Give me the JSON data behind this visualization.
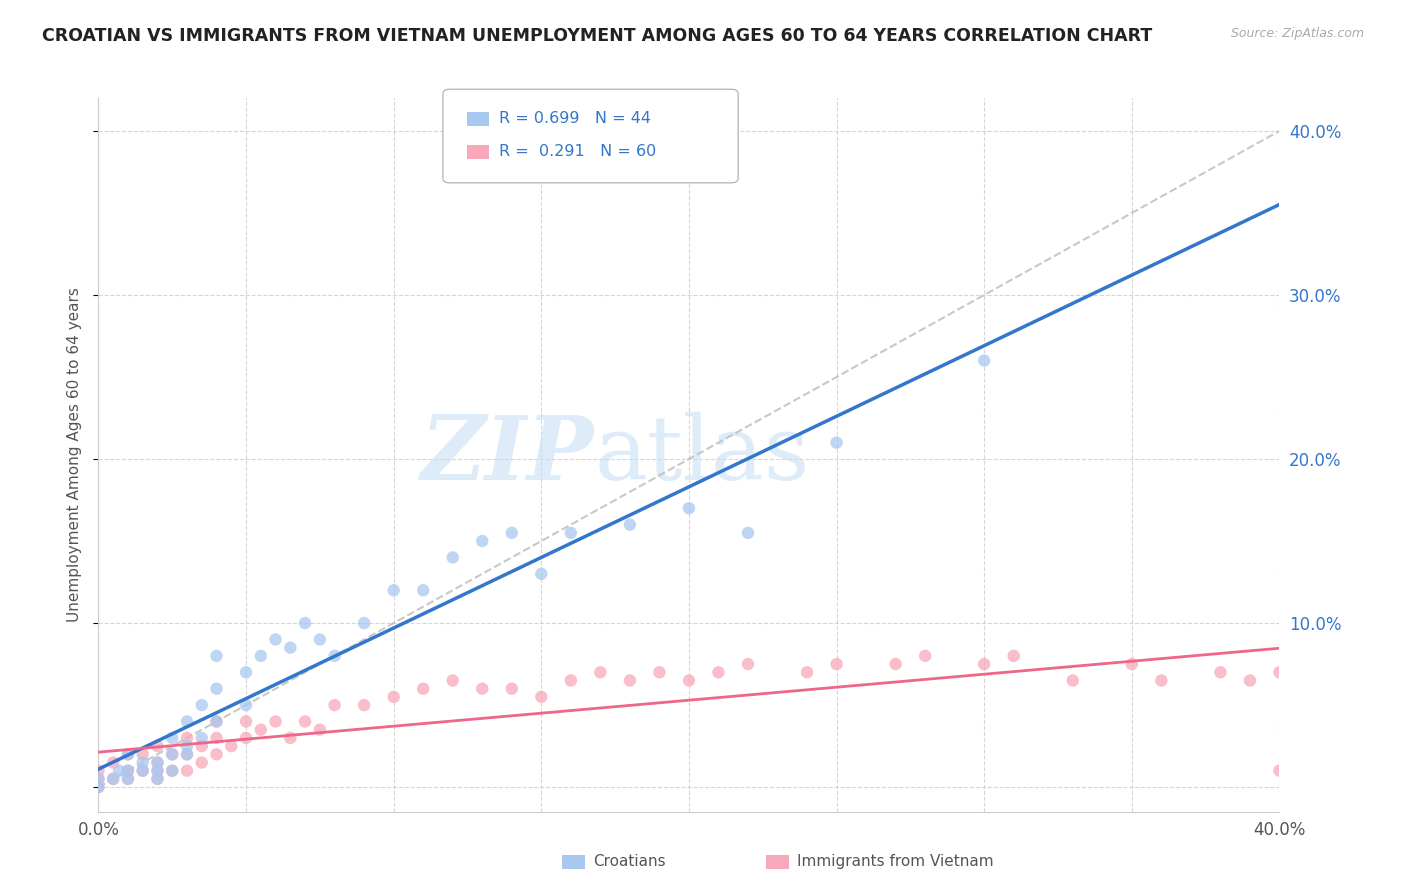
{
  "title": "CROATIAN VS IMMIGRANTS FROM VIETNAM UNEMPLOYMENT AMONG AGES 60 TO 64 YEARS CORRELATION CHART",
  "source": "Source: ZipAtlas.com",
  "ylabel": "Unemployment Among Ages 60 to 64 years",
  "xlim": [
    0.0,
    0.4
  ],
  "ylim": [
    -0.015,
    0.42
  ],
  "croatian_R": 0.699,
  "croatian_N": 44,
  "vietnam_R": 0.291,
  "vietnam_N": 60,
  "croatian_color": "#a8c8f0",
  "vietnam_color": "#f8a8b8",
  "croatian_line_color": "#3377cc",
  "vietnam_line_color": "#ee6688",
  "diagonal_color": "#bbbbbb",
  "legend_text_color": "#3377cc",
  "background_color": "#ffffff",
  "grid_color": "#cccccc",
  "watermark_zip": "ZIP",
  "watermark_atlas": "atlas",
  "croatian_x": [
    0.0,
    0.0,
    0.005,
    0.007,
    0.01,
    0.01,
    0.01,
    0.015,
    0.015,
    0.02,
    0.02,
    0.02,
    0.025,
    0.025,
    0.025,
    0.03,
    0.03,
    0.03,
    0.035,
    0.035,
    0.04,
    0.04,
    0.04,
    0.05,
    0.05,
    0.055,
    0.06,
    0.065,
    0.07,
    0.075,
    0.08,
    0.09,
    0.1,
    0.11,
    0.12,
    0.13,
    0.14,
    0.15,
    0.16,
    0.18,
    0.2,
    0.22,
    0.25,
    0.3
  ],
  "croatian_y": [
    0.0,
    0.005,
    0.005,
    0.01,
    0.005,
    0.01,
    0.02,
    0.01,
    0.015,
    0.005,
    0.01,
    0.015,
    0.01,
    0.02,
    0.03,
    0.02,
    0.025,
    0.04,
    0.03,
    0.05,
    0.04,
    0.06,
    0.08,
    0.05,
    0.07,
    0.08,
    0.09,
    0.085,
    0.1,
    0.09,
    0.08,
    0.1,
    0.12,
    0.12,
    0.14,
    0.15,
    0.155,
    0.13,
    0.155,
    0.16,
    0.17,
    0.155,
    0.21,
    0.26
  ],
  "vietnam_x": [
    0.0,
    0.0,
    0.0,
    0.005,
    0.005,
    0.01,
    0.01,
    0.01,
    0.015,
    0.015,
    0.02,
    0.02,
    0.02,
    0.02,
    0.025,
    0.025,
    0.03,
    0.03,
    0.03,
    0.035,
    0.035,
    0.04,
    0.04,
    0.04,
    0.045,
    0.05,
    0.05,
    0.055,
    0.06,
    0.065,
    0.07,
    0.075,
    0.08,
    0.09,
    0.1,
    0.11,
    0.12,
    0.13,
    0.14,
    0.15,
    0.16,
    0.17,
    0.18,
    0.19,
    0.2,
    0.21,
    0.22,
    0.24,
    0.25,
    0.27,
    0.28,
    0.3,
    0.31,
    0.33,
    0.35,
    0.36,
    0.38,
    0.39,
    0.4,
    0.4
  ],
  "vietnam_y": [
    0.0,
    0.005,
    0.01,
    0.005,
    0.015,
    0.005,
    0.01,
    0.02,
    0.01,
    0.02,
    0.005,
    0.01,
    0.015,
    0.025,
    0.01,
    0.02,
    0.01,
    0.02,
    0.03,
    0.015,
    0.025,
    0.02,
    0.03,
    0.04,
    0.025,
    0.03,
    0.04,
    0.035,
    0.04,
    0.03,
    0.04,
    0.035,
    0.05,
    0.05,
    0.055,
    0.06,
    0.065,
    0.06,
    0.06,
    0.055,
    0.065,
    0.07,
    0.065,
    0.07,
    0.065,
    0.07,
    0.075,
    0.07,
    0.075,
    0.075,
    0.08,
    0.075,
    0.08,
    0.065,
    0.075,
    0.065,
    0.07,
    0.065,
    0.07,
    0.01
  ]
}
